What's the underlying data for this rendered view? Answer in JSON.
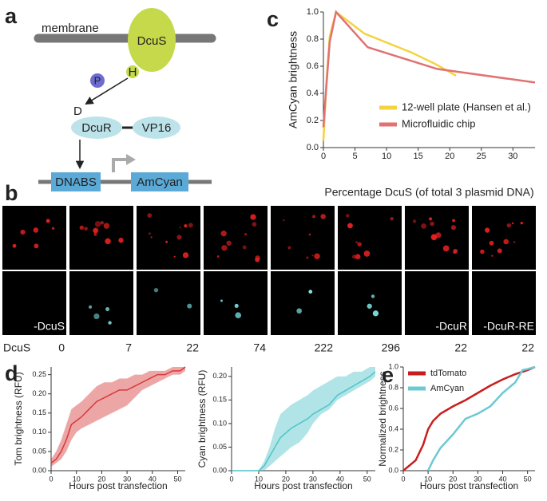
{
  "panels": [
    "a",
    "b",
    "c",
    "d",
    "e"
  ],
  "diagram": {
    "membrane": "membrane",
    "dcus": "DcuS",
    "phospho": "P",
    "histidine": "H",
    "aspartate": "D",
    "dcur": "DcuR",
    "vp16": "VP16",
    "dnabs": "DNABS",
    "amcyan": "AmCyan"
  },
  "micrographs": {
    "row_label": "DcuS",
    "columns": [
      {
        "amount": 0,
        "condition": "-DcuS"
      },
      {
        "amount": 7
      },
      {
        "amount": 22
      },
      {
        "amount": 74
      },
      {
        "amount": 222
      },
      {
        "amount": 296
      },
      {
        "amount": 22,
        "condition": "-DcuR"
      },
      {
        "amount": 22,
        "condition": "-DcuR-RE"
      }
    ]
  },
  "chart_data": [
    {
      "type": "line",
      "xlabel": "Percentage DcuS (of total 3 plasmid DNA)",
      "ylabel": "AmCyan brightness",
      "xlim": [
        0,
        33.5
      ],
      "xticks": [
        0,
        5,
        10,
        15,
        20,
        25,
        30
      ],
      "ylim": [
        0,
        1.0
      ],
      "yticks": [
        {
          "value": 0,
          "label": "0.0"
        },
        0.2,
        0.4,
        0.6,
        0.8,
        {
          "value": 1,
          "label": "1.0"
        }
      ],
      "legend": "lower right",
      "series": [
        {
          "name": "12-well plate (Hansen et al.)",
          "color": "#f5d33f",
          "x": [
            0,
            0.5,
            1,
            2,
            6.5,
            14,
            18,
            21
          ],
          "values": [
            0.05,
            0.5,
            0.82,
            1.0,
            0.84,
            0.7,
            0.61,
            0.53
          ]
        },
        {
          "name": "Microfluidic chip",
          "color": "#e07272",
          "x": [
            0,
            0.3,
            1,
            2,
            7,
            18,
            33.5
          ],
          "values": [
            0.15,
            0.35,
            0.78,
            1.0,
            0.74,
            0.58,
            0.48
          ]
        }
      ]
    },
    {
      "type": "line",
      "xlabel": "Hours post transfection",
      "ylabel": "Tom brightness (RFU)",
      "xlim": [
        0,
        53
      ],
      "xticks": [
        0,
        10,
        20,
        30,
        40,
        50
      ],
      "ylim": [
        0,
        0.27
      ],
      "yticks": [
        {
          "value": 0,
          "label": "0.00"
        },
        0.05,
        {
          "value": 0.1,
          "label": "0.10"
        },
        0.15,
        {
          "value": 0.2,
          "label": "0.20"
        },
        0.25
      ],
      "series": [
        {
          "color": "#d63a3a",
          "x": [
            0,
            2,
            4,
            6,
            8,
            10,
            12,
            15,
            18,
            21,
            24,
            27,
            30,
            33,
            36,
            39,
            42,
            45,
            48,
            51,
            53
          ],
          "values": [
            0.02,
            0.03,
            0.05,
            0.08,
            0.12,
            0.13,
            0.14,
            0.16,
            0.18,
            0.19,
            0.2,
            0.21,
            0.21,
            0.22,
            0.23,
            0.24,
            0.25,
            0.25,
            0.26,
            0.26,
            0.27
          ],
          "lower": [
            0.01,
            0.02,
            0.03,
            0.05,
            0.08,
            0.1,
            0.11,
            0.12,
            0.13,
            0.14,
            0.15,
            0.16,
            0.17,
            0.19,
            0.21,
            0.22,
            0.23,
            0.24,
            0.25,
            0.25,
            0.26
          ],
          "upper": [
            0.03,
            0.05,
            0.08,
            0.12,
            0.16,
            0.17,
            0.18,
            0.2,
            0.22,
            0.23,
            0.23,
            0.24,
            0.24,
            0.25,
            0.25,
            0.26,
            0.26,
            0.26,
            0.27,
            0.27,
            0.27
          ]
        }
      ]
    },
    {
      "type": "line",
      "xlabel": "Hours post transfection",
      "ylabel": "Cyan brightness (RFU)",
      "xlim": [
        0,
        53
      ],
      "xticks": [
        0,
        10,
        20,
        30,
        40,
        50
      ],
      "ylim": [
        0,
        0.22
      ],
      "yticks": [
        {
          "value": 0,
          "label": "0.00"
        },
        0.05,
        {
          "value": 0.1,
          "label": "0.10"
        },
        0.15,
        {
          "value": 0.2,
          "label": "0.20"
        }
      ],
      "series": [
        {
          "color": "#4fc4c9",
          "x": [
            0,
            10,
            12,
            14,
            16,
            18,
            20,
            22,
            25,
            28,
            30,
            33,
            36,
            39,
            42,
            45,
            48,
            51,
            53
          ],
          "values": [
            0,
            0,
            0.01,
            0.03,
            0.05,
            0.07,
            0.08,
            0.09,
            0.1,
            0.11,
            0.12,
            0.13,
            0.14,
            0.16,
            0.17,
            0.18,
            0.19,
            0.2,
            0.21
          ],
          "lower": [
            0,
            0,
            0,
            0.01,
            0.02,
            0.03,
            0.04,
            0.05,
            0.06,
            0.08,
            0.1,
            0.12,
            0.13,
            0.15,
            0.16,
            0.17,
            0.18,
            0.19,
            0.2
          ],
          "upper": [
            0,
            0,
            0.02,
            0.05,
            0.09,
            0.12,
            0.13,
            0.14,
            0.15,
            0.16,
            0.17,
            0.18,
            0.19,
            0.2,
            0.2,
            0.21,
            0.21,
            0.22,
            0.22
          ]
        }
      ]
    },
    {
      "type": "line",
      "xlabel": "Hours post transfection",
      "ylabel": "Normalized brightness",
      "xlim": [
        0,
        53
      ],
      "xticks": [
        0,
        10,
        20,
        30,
        40,
        50
      ],
      "ylim": [
        0,
        1.0
      ],
      "yticks": [
        {
          "value": 0,
          "label": "0.0"
        },
        0.2,
        0.4,
        0.6,
        0.8,
        {
          "value": 1,
          "label": "1.0"
        }
      ],
      "legend": "upper left",
      "series": [
        {
          "name": "tdTomato",
          "color": "#c81e1e",
          "x": [
            0,
            5,
            8,
            10,
            12,
            15,
            20,
            25,
            30,
            35,
            40,
            45,
            50,
            53
          ],
          "values": [
            0,
            0.1,
            0.25,
            0.4,
            0.48,
            0.55,
            0.62,
            0.68,
            0.75,
            0.82,
            0.88,
            0.93,
            0.97,
            1.0
          ]
        },
        {
          "name": "AmCyan",
          "color": "#6cc9d2",
          "x": [
            10,
            12,
            15,
            20,
            25,
            30,
            35,
            40,
            45,
            48,
            50,
            53
          ],
          "values": [
            0,
            0.1,
            0.22,
            0.35,
            0.5,
            0.55,
            0.62,
            0.75,
            0.85,
            0.97,
            0.98,
            1.0
          ]
        }
      ]
    }
  ]
}
